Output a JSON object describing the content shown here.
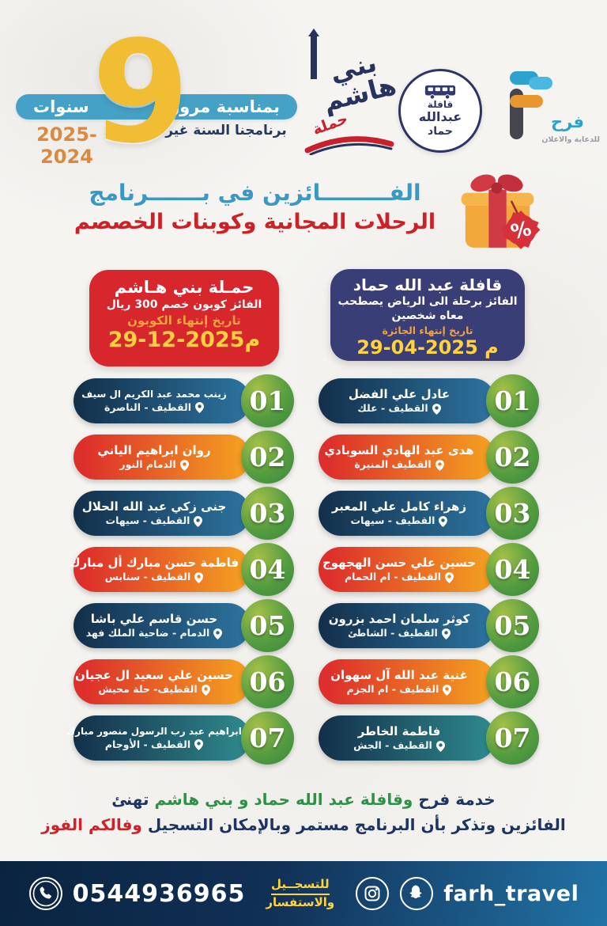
{
  "banner": {
    "occasion_right": "بمناسبة مرور",
    "occasion_left": "سنوات",
    "years": "9",
    "tagline": "برنامجنا السنة غير",
    "season": "2025-2024"
  },
  "logos": {
    "hashim_prefix": "حملة",
    "hashim_title": "بني هاشم",
    "caravan_line1": "قافلة",
    "caravan_line2": "عبدالله",
    "caravan_line3": "حماد",
    "farh_name": "فرح",
    "farh_tagline": "للدعاية والاعلان"
  },
  "title": {
    "line1": "الفـــــــــائزين في بـــــــرنامج",
    "line2": "الرحلات المجانية وكوبنات الخصصم"
  },
  "cards": {
    "caravan": {
      "title": "قافلة عبد الله حماد",
      "desc_line1": "الفائز برحلة الى الرياض  يصطحب",
      "desc_line2": "معاه شخصين",
      "expiry_label": "تاريخ إنتهاء الجائزة",
      "expiry_date": "29-04-2025 م"
    },
    "hashim": {
      "title": "حمـلة بني هـاشم",
      "desc_line1": "الفائز كوبون خصم 300 ريال",
      "expiry_label": "تاريخ إنتهاء الكوبون",
      "expiry_date": "29-12-2025م"
    }
  },
  "winners_caravan": [
    {
      "num": "01",
      "name": "عادل علي الفضل",
      "location": "القطيف - علك"
    },
    {
      "num": "02",
      "name": "هدى عبد الهادي السوبادي",
      "location": "القطيف المنيرة"
    },
    {
      "num": "03",
      "name": "زهراء كامل علي المعبر",
      "location": "القطيف - سيهات"
    },
    {
      "num": "04",
      "name": "حسين علي حسن الهجهوج",
      "location": "القطيف - ام الحمام"
    },
    {
      "num": "05",
      "name": "كوثر سلمان احمد بزرون",
      "location": "القطيف - الشاطئ"
    },
    {
      "num": "06",
      "name": "غنية عبد الله آل سهوان",
      "location": "القطيف - ام الجزم"
    },
    {
      "num": "07",
      "name": "فاطمة الخاطر",
      "location": "القطيف - الجش"
    }
  ],
  "winners_hashim": [
    {
      "num": "01",
      "name": "زينب محمد عبد الكريم ال سيف",
      "location": "القطيف - الناصرة"
    },
    {
      "num": "02",
      "name": "روان ابراهيم الياني",
      "location": "الدمام النور"
    },
    {
      "num": "03",
      "name": "جنى زكي عبد الله الحلال",
      "location": "القطيف - سيهات"
    },
    {
      "num": "04",
      "name": "فاطمة حسن مبارك أل مبارك",
      "location": "القطيف - سنابس"
    },
    {
      "num": "05",
      "name": "حسن قاسم علي باشا",
      "location": "الدمام - ضاحية الملك فهد"
    },
    {
      "num": "06",
      "name": "حسين علي سعيد ال عجيان",
      "location": "القطيف- حلة محيش"
    },
    {
      "num": "07",
      "name": "ابراهيم عبد رب الرسول منصور مبارك",
      "location": "القطيف - الأوجام"
    }
  ],
  "footer": {
    "line1_a": "خدمة فرح",
    "line1_b": "وقافلة عبد الله حماد و بني هاشم",
    "line1_c": "تهنئ",
    "line2_a": "الفائزين وتذكر بأن البرنامج مستمر وبالإمكان التسجيل",
    "line2_b": "وفالكم الفوز"
  },
  "contact": {
    "phone": "0544936965",
    "register_line1": "للتسجــيل",
    "register_line2": "والاستفسار",
    "handle": "farh_travel"
  },
  "colors": {
    "title_teal": "#3b98c3",
    "title_red": "#cb2127",
    "card_red": "#d7262c",
    "card_navy": "#3a3e77",
    "pill_blue_gradient": [
      "#132f4a",
      "#2d74a0"
    ],
    "pill_orange_gradient": [
      "#dd2f2b",
      "#f29a21"
    ],
    "pill_teal_gradient": [
      "#132f4a",
      "#2f8b8d"
    ],
    "number_badge_green": "#4a9740",
    "expiry_label_orange": "#f2a23e",
    "expiry_date_yellow": "#ffd23e",
    "footer_green": "#2f9147",
    "footer_navy": "#1d3461",
    "footer_red": "#cf2127",
    "bar_gradient": [
      "#0a2440",
      "#2273a6"
    ],
    "anniversary_yellow": "#f0bd33",
    "anniversary_teal": "#46a1c6",
    "season_orange": "#d98a3f"
  }
}
